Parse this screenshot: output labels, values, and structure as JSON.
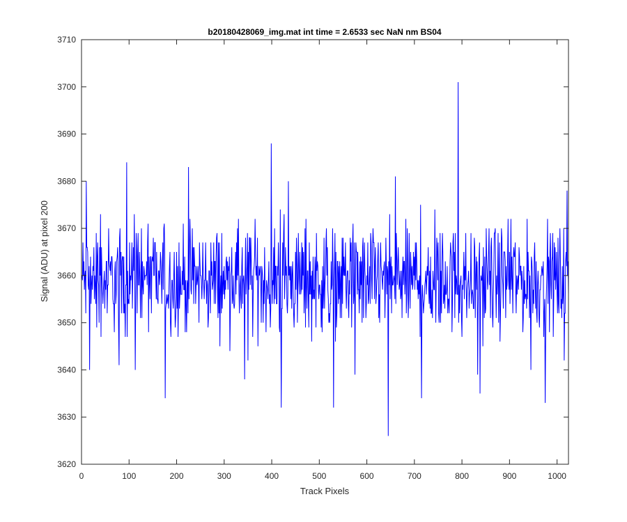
{
  "chart_data": {
    "type": "line",
    "title": "b20180428069_img.mat int time = 2.6533 sec  NaN nm BS04",
    "xlabel": "Track Pixels",
    "ylabel": "Signal (ADU) at pixel 200",
    "xlim": [
      0,
      1024
    ],
    "ylim": [
      3620,
      3710
    ],
    "xticks": [
      0,
      100,
      200,
      300,
      400,
      500,
      600,
      700,
      800,
      900,
      1000
    ],
    "yticks": [
      3620,
      3630,
      3640,
      3650,
      3660,
      3670,
      3680,
      3690,
      3700,
      3710
    ],
    "grid": false,
    "series": [
      {
        "color": "#0000ff",
        "baseline": 3659,
        "noise_amplitude": 6,
        "n_points": 1024,
        "notable_points": [
          {
            "x": 10,
            "y": 3680
          },
          {
            "x": 95,
            "y": 3684
          },
          {
            "x": 113,
            "y": 3640
          },
          {
            "x": 176,
            "y": 3634
          },
          {
            "x": 225,
            "y": 3683
          },
          {
            "x": 343,
            "y": 3638
          },
          {
            "x": 420,
            "y": 3632
          },
          {
            "x": 530,
            "y": 3632
          },
          {
            "x": 575,
            "y": 3639
          },
          {
            "x": 645,
            "y": 3626
          },
          {
            "x": 660,
            "y": 3681
          },
          {
            "x": 715,
            "y": 3634
          },
          {
            "x": 792,
            "y": 3701
          },
          {
            "x": 833,
            "y": 3639
          },
          {
            "x": 838,
            "y": 3635
          },
          {
            "x": 945,
            "y": 3640
          },
          {
            "x": 1015,
            "y": 3642
          }
        ]
      }
    ]
  }
}
